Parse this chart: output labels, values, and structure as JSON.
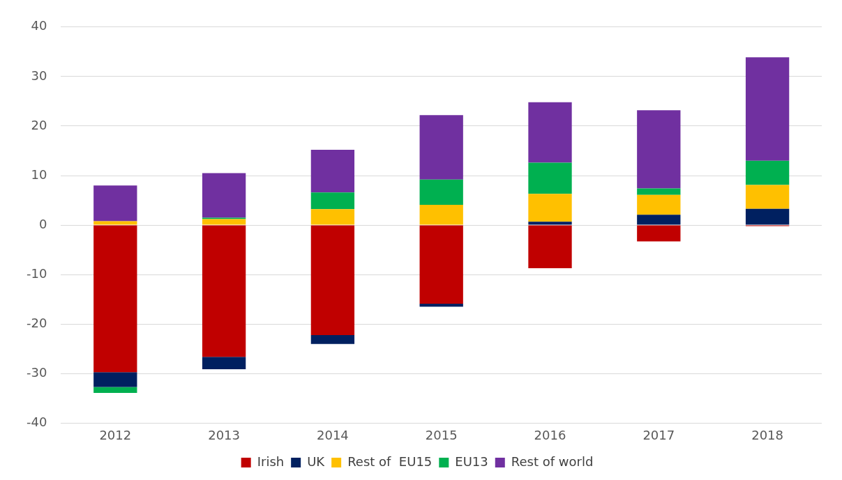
{
  "chart_data": {
    "type": "bar",
    "stacked": true,
    "categories": [
      "2012",
      "2013",
      "2014",
      "2015",
      "2016",
      "2017",
      "2018"
    ],
    "series": [
      {
        "name": "Irish",
        "color": "#c00000",
        "values": [
          -29.7,
          -26.6,
          -22.2,
          -15.9,
          -8.7,
          -3.3,
          -0.2
        ]
      },
      {
        "name": "UK",
        "color": "#002060",
        "values": [
          -3.0,
          -2.5,
          -1.8,
          -0.6,
          0.7,
          2.1,
          3.3
        ]
      },
      {
        "name": "Rest of  EU15",
        "color": "#ffc000",
        "values": [
          0.8,
          1.2,
          3.2,
          4.1,
          5.6,
          4.0,
          4.8
        ]
      },
      {
        "name": "EU13",
        "color": "#00b050",
        "values": [
          -1.2,
          0.3,
          3.4,
          5.1,
          6.3,
          1.3,
          4.9
        ]
      },
      {
        "name": "Rest of world",
        "color": "#7030a0",
        "values": [
          7.2,
          9.0,
          8.6,
          13.0,
          12.2,
          15.8,
          20.9
        ]
      }
    ],
    "ylim": [
      -40,
      40
    ],
    "yticks": [
      -40,
      -30,
      -20,
      -10,
      0,
      10,
      20,
      30,
      40
    ],
    "grid": "y",
    "legend": "bottom"
  }
}
